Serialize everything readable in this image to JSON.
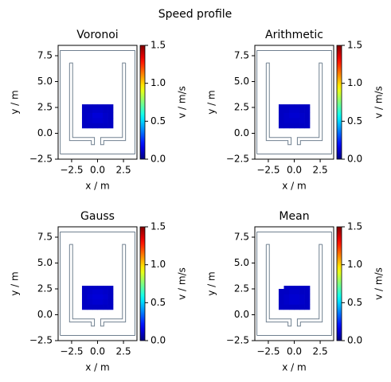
{
  "title": "Speed profile",
  "chart_data": [
    {
      "type": "heatmap",
      "title": "Voronoi",
      "xlabel": "x / m",
      "ylabel": "y / m",
      "colorbar_label": "v / m/s",
      "colormap": "jet",
      "xlim": [
        -3.8,
        3.8
      ],
      "ylim": [
        -2.5,
        8.5
      ],
      "xticks": [
        {
          "value": -2.5,
          "label": "−2.5"
        },
        {
          "value": 0,
          "label": "0.0"
        },
        2.5
      ],
      "yticks": [
        {
          "value": -2.5,
          "label": "−2.5"
        },
        {
          "value": 0,
          "label": "0.0"
        },
        2.5,
        {
          "value": 5,
          "label": "5.0"
        },
        7.5
      ],
      "clim": [
        0,
        1.5
      ],
      "cticks": [
        {
          "value": 0,
          "label": "0.0"
        },
        0.5,
        {
          "value": 1,
          "label": "1.0"
        },
        1.5
      ],
      "xbins": [
        -1.5,
        -1,
        -0.5,
        0,
        0.5,
        1,
        1.5
      ],
      "ybins": [
        0.5,
        1,
        1.5,
        2,
        2.5,
        2.8
      ],
      "values": [
        [
          0.1,
          0.1,
          0.1,
          0.1,
          0.1,
          0.1
        ],
        [
          0.1,
          0.11,
          0.12,
          0.12,
          0.11,
          0.1
        ],
        [
          0.1,
          0.11,
          0.13,
          0.13,
          0.11,
          0.1
        ],
        [
          0.1,
          0.1,
          0.11,
          0.11,
          0.1,
          0.1
        ],
        [
          0.1,
          0.1,
          0.1,
          0.1,
          0.1,
          0.1
        ]
      ]
    },
    {
      "type": "heatmap",
      "title": "Arithmetic",
      "xlabel": "x / m",
      "ylabel": "y / m",
      "colorbar_label": "v / m/s",
      "colormap": "jet",
      "xlim": [
        -3.8,
        3.8
      ],
      "ylim": [
        -2.5,
        8.5
      ],
      "xticks": [
        {
          "value": -2.5,
          "label": "−2.5"
        },
        {
          "value": 0,
          "label": "0.0"
        },
        2.5
      ],
      "yticks": [
        {
          "value": -2.5,
          "label": "−2.5"
        },
        {
          "value": 0,
          "label": "0.0"
        },
        2.5,
        {
          "value": 5,
          "label": "5.0"
        },
        7.5
      ],
      "clim": [
        0,
        1.5
      ],
      "cticks": [
        {
          "value": 0,
          "label": "0.0"
        },
        0.5,
        {
          "value": 1,
          "label": "1.0"
        },
        1.5
      ],
      "xbins": [
        -1.5,
        -1,
        -0.5,
        0,
        0.5,
        1,
        1.5
      ],
      "ybins": [
        0.5,
        1,
        1.5,
        2,
        2.5,
        2.8
      ],
      "values": [
        [
          0.1,
          0.1,
          0.1,
          0.1,
          0.1,
          0.1
        ],
        [
          0.1,
          0.11,
          0.11,
          0.11,
          0.11,
          0.1
        ],
        [
          0.1,
          0.11,
          0.12,
          0.12,
          0.11,
          0.1
        ],
        [
          0.1,
          0.1,
          0.11,
          0.11,
          0.1,
          0.1
        ],
        [
          0.1,
          0.1,
          0.1,
          0.1,
          0.1,
          0.1
        ]
      ]
    },
    {
      "type": "heatmap",
      "title": "Gauss",
      "xlabel": "x / m",
      "ylabel": "y / m",
      "colorbar_label": "v / m/s",
      "colormap": "jet",
      "xlim": [
        -3.8,
        3.8
      ],
      "ylim": [
        -2.5,
        8.5
      ],
      "xticks": [
        {
          "value": -2.5,
          "label": "−2.5"
        },
        {
          "value": 0,
          "label": "0.0"
        },
        2.5
      ],
      "yticks": [
        {
          "value": -2.5,
          "label": "−2.5"
        },
        {
          "value": 0,
          "label": "0.0"
        },
        2.5,
        {
          "value": 5,
          "label": "5.0"
        },
        7.5
      ],
      "clim": [
        0,
        1.5
      ],
      "cticks": [
        {
          "value": 0,
          "label": "0.0"
        },
        0.5,
        {
          "value": 1,
          "label": "1.0"
        },
        1.5
      ],
      "xbins": [
        -1.5,
        -1,
        -0.5,
        0,
        0.5,
        1,
        1.5
      ],
      "ybins": [
        0.5,
        1,
        1.5,
        2,
        2.5,
        2.8
      ],
      "values": [
        [
          0.1,
          0.1,
          0.1,
          0.1,
          0.1,
          0.1
        ],
        [
          0.1,
          0.11,
          0.12,
          0.12,
          0.11,
          0.1
        ],
        [
          0.1,
          0.12,
          0.13,
          0.13,
          0.12,
          0.1
        ],
        [
          0.1,
          0.11,
          0.12,
          0.12,
          0.11,
          0.1
        ],
        [
          0.1,
          0.1,
          0.1,
          0.1,
          0.1,
          0.1
        ]
      ]
    },
    {
      "type": "heatmap",
      "title": "Mean",
      "xlabel": "x / m",
      "ylabel": "y / m",
      "colorbar_label": "v / m/s",
      "colormap": "jet",
      "xlim": [
        -3.8,
        3.8
      ],
      "ylim": [
        -2.5,
        8.5
      ],
      "xticks": [
        {
          "value": -2.5,
          "label": "−2.5"
        },
        {
          "value": 0,
          "label": "0.0"
        },
        2.5
      ],
      "yticks": [
        {
          "value": -2.5,
          "label": "−2.5"
        },
        {
          "value": 0,
          "label": "0.0"
        },
        2.5,
        {
          "value": 5,
          "label": "5.0"
        },
        7.5
      ],
      "clim": [
        0,
        1.5
      ],
      "cticks": [
        {
          "value": 0,
          "label": "0.0"
        },
        0.5,
        {
          "value": 1,
          "label": "1.0"
        },
        1.5
      ],
      "xbins": [
        -1.5,
        -1,
        -0.5,
        0,
        0.5,
        1,
        1.5
      ],
      "ybins": [
        0.5,
        1,
        1.5,
        2,
        2.5,
        2.8
      ],
      "values": [
        [
          0.1,
          0.1,
          0.1,
          0.1,
          0.1,
          0.1
        ],
        [
          0.1,
          0.11,
          0.12,
          0.12,
          0.11,
          0.1
        ],
        [
          0.1,
          0.11,
          0.12,
          0.12,
          0.11,
          0.1
        ],
        [
          0.1,
          0.1,
          0.11,
          0.11,
          0.1,
          0.1
        ],
        [
          null,
          0.1,
          0.1,
          0.1,
          0.1,
          0.1
        ]
      ]
    }
  ]
}
